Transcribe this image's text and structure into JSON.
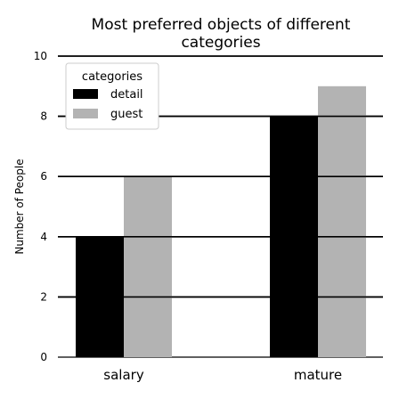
{
  "colors": {
    "detail": "#000000",
    "guest": "#b3b3b3",
    "grid": "#000000",
    "background": "#ffffff"
  },
  "chart_data": {
    "type": "bar",
    "title": "Most preferred objects of different categories",
    "title_lines": [
      "Most preferred objects of different",
      "categories"
    ],
    "xlabel": "",
    "ylabel": "Number of People",
    "categories": [
      "salary",
      "mature"
    ],
    "series": [
      {
        "name": "detail",
        "values": [
          4,
          8
        ]
      },
      {
        "name": "guest",
        "values": [
          6,
          9
        ]
      }
    ],
    "ylim": [
      0,
      10
    ],
    "yticks": [
      0,
      2,
      4,
      6,
      8,
      10
    ],
    "grid": true,
    "legend": {
      "title": "categories",
      "placement": "top-left"
    }
  }
}
